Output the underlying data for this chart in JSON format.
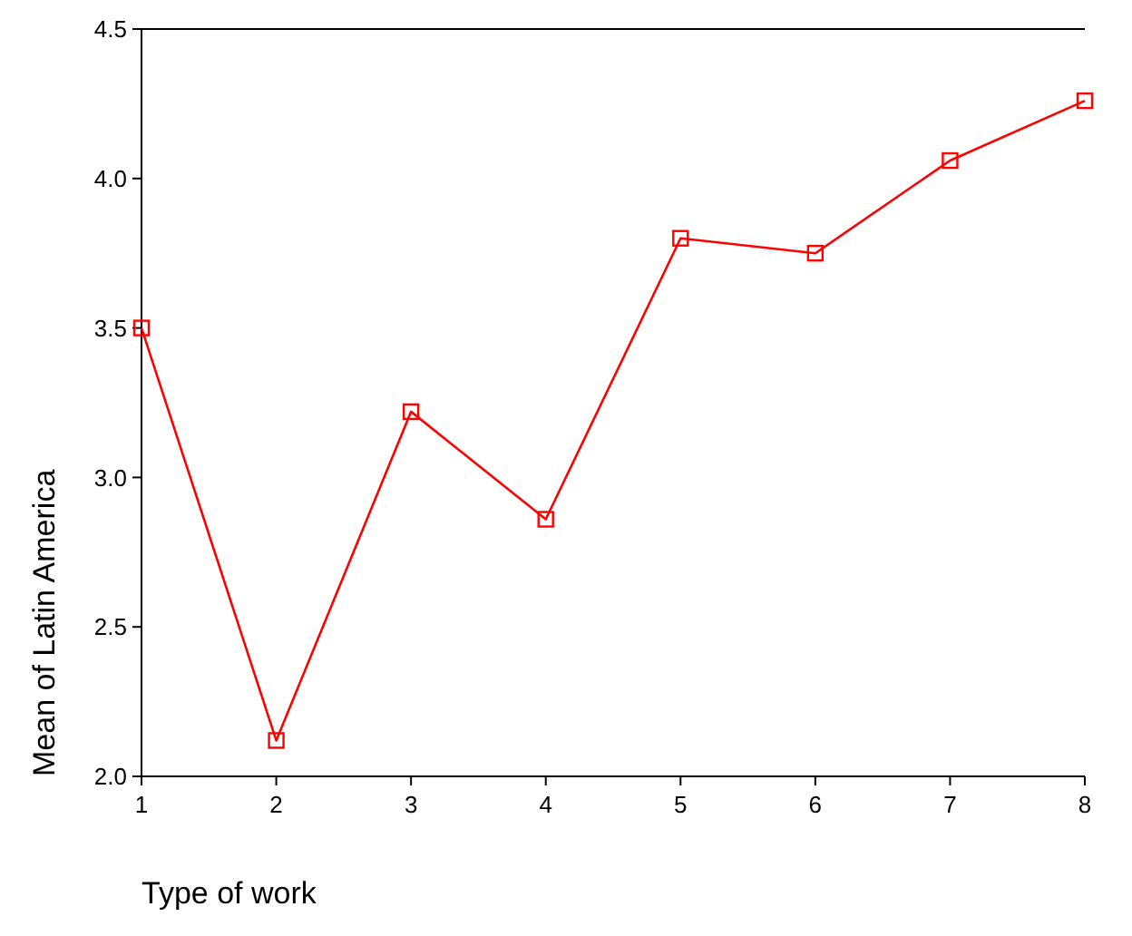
{
  "chart_data": {
    "type": "line",
    "xlabel": "Type of work",
    "ylabel": "Mean of Latin America",
    "x": [
      1,
      2,
      3,
      4,
      5,
      6,
      7,
      8
    ],
    "series": [
      {
        "color": "#ff0000",
        "values": [
          3.5,
          2.12,
          3.22,
          2.86,
          3.8,
          3.75,
          4.06,
          4.26
        ]
      }
    ],
    "xlim": [
      1,
      8
    ],
    "xticks": [
      1,
      2,
      3,
      4,
      5,
      6,
      7,
      8
    ],
    "ylim": [
      2.0,
      4.5
    ],
    "yticks": [
      {
        "value": 2.0,
        "label": "2.0"
      },
      {
        "value": 2.5,
        "label": "2.5"
      },
      {
        "value": 3.0,
        "label": "3.0"
      },
      {
        "value": 3.5,
        "label": "3.5"
      },
      {
        "value": 4.0,
        "label": "4.0"
      },
      {
        "value": 4.5,
        "label": "4.5"
      }
    ],
    "marker": "square",
    "line_style": "solid",
    "grid": false
  }
}
